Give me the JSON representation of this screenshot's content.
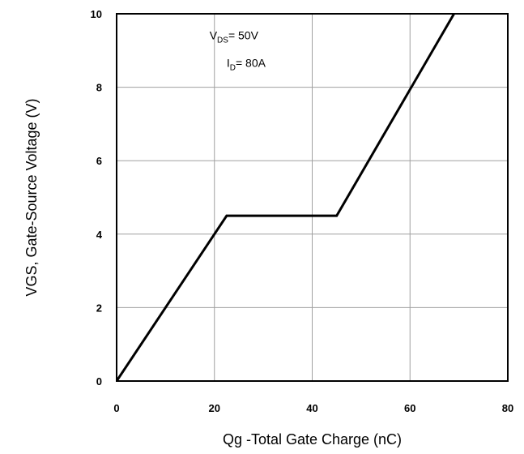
{
  "chart_data": {
    "type": "line",
    "title": "",
    "xlabel": "Qg -Total Gate Charge (nC)",
    "ylabel": "VGS, Gate-Source Voltage (V)",
    "xlim": [
      0,
      80
    ],
    "ylim": [
      0,
      10
    ],
    "x_ticks": [
      "0",
      "20",
      "40",
      "60",
      "80"
    ],
    "y_ticks": [
      "0",
      "2",
      "4",
      "6",
      "8",
      "10"
    ],
    "grid": true,
    "legend": "none",
    "series": [
      {
        "x": [
          0,
          22.5,
          45,
          69
        ],
        "y": [
          0,
          4.5,
          4.5,
          10
        ]
      }
    ],
    "annotations": [
      {
        "main": "V",
        "sub": "DS",
        "rest": "= 50V"
      },
      {
        "main": "I",
        "sub": "D",
        "rest": "= 80A"
      }
    ],
    "line_color": "#000000",
    "grid_color": "#a0a0a0"
  }
}
